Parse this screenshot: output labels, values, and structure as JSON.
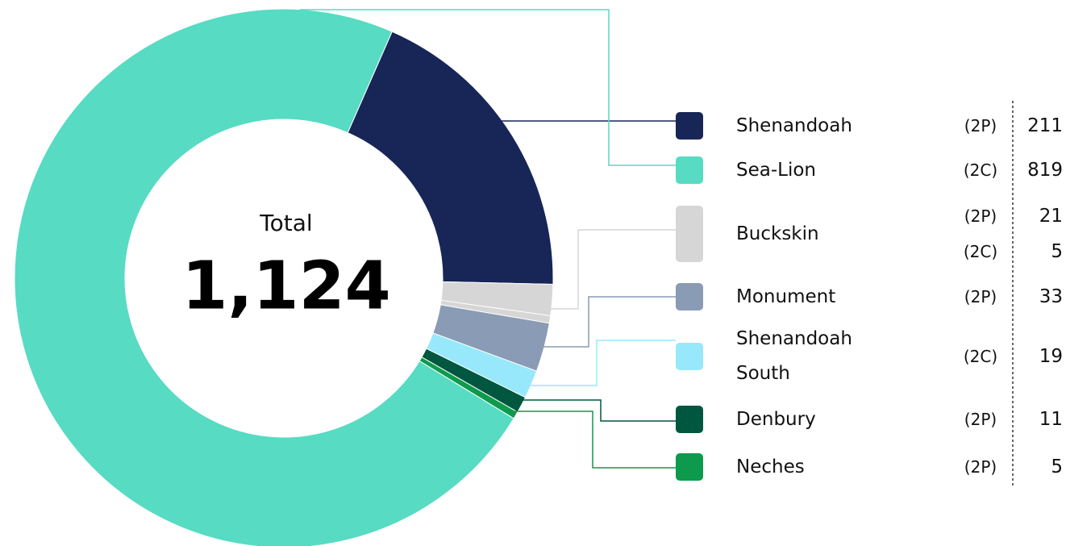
{
  "chart_data": {
    "type": "donut",
    "total": {
      "label": "Total",
      "value": 1124,
      "value_label": "1,124"
    },
    "items": [
      {
        "name": "Shenandoah",
        "color": "#172657",
        "entries": [
          {
            "code": "(2P)",
            "value": 211
          }
        ]
      },
      {
        "name": "Sea-Lion",
        "color": "#57dbc3",
        "entries": [
          {
            "code": "(2C)",
            "value": 819
          }
        ]
      },
      {
        "name": "Buckskin",
        "color": "#d6d6d6",
        "entries": [
          {
            "code": "(2P)",
            "value": 21
          },
          {
            "code": "(2C)",
            "value": 5
          }
        ]
      },
      {
        "name": "Monument",
        "color": "#8a9bb5",
        "entries": [
          {
            "code": "(2P)",
            "value": 33
          }
        ]
      },
      {
        "name": "Shenandoah South",
        "color": "#98e8fb",
        "entries": [
          {
            "code": "(2C)",
            "value": 19
          }
        ]
      },
      {
        "name": "Denbury",
        "color": "#00573f",
        "entries": [
          {
            "code": "(2P)",
            "value": 11
          }
        ]
      },
      {
        "name": "Neches",
        "color": "#0e9a4c",
        "entries": [
          {
            "code": "(2P)",
            "value": 5
          }
        ]
      }
    ]
  }
}
